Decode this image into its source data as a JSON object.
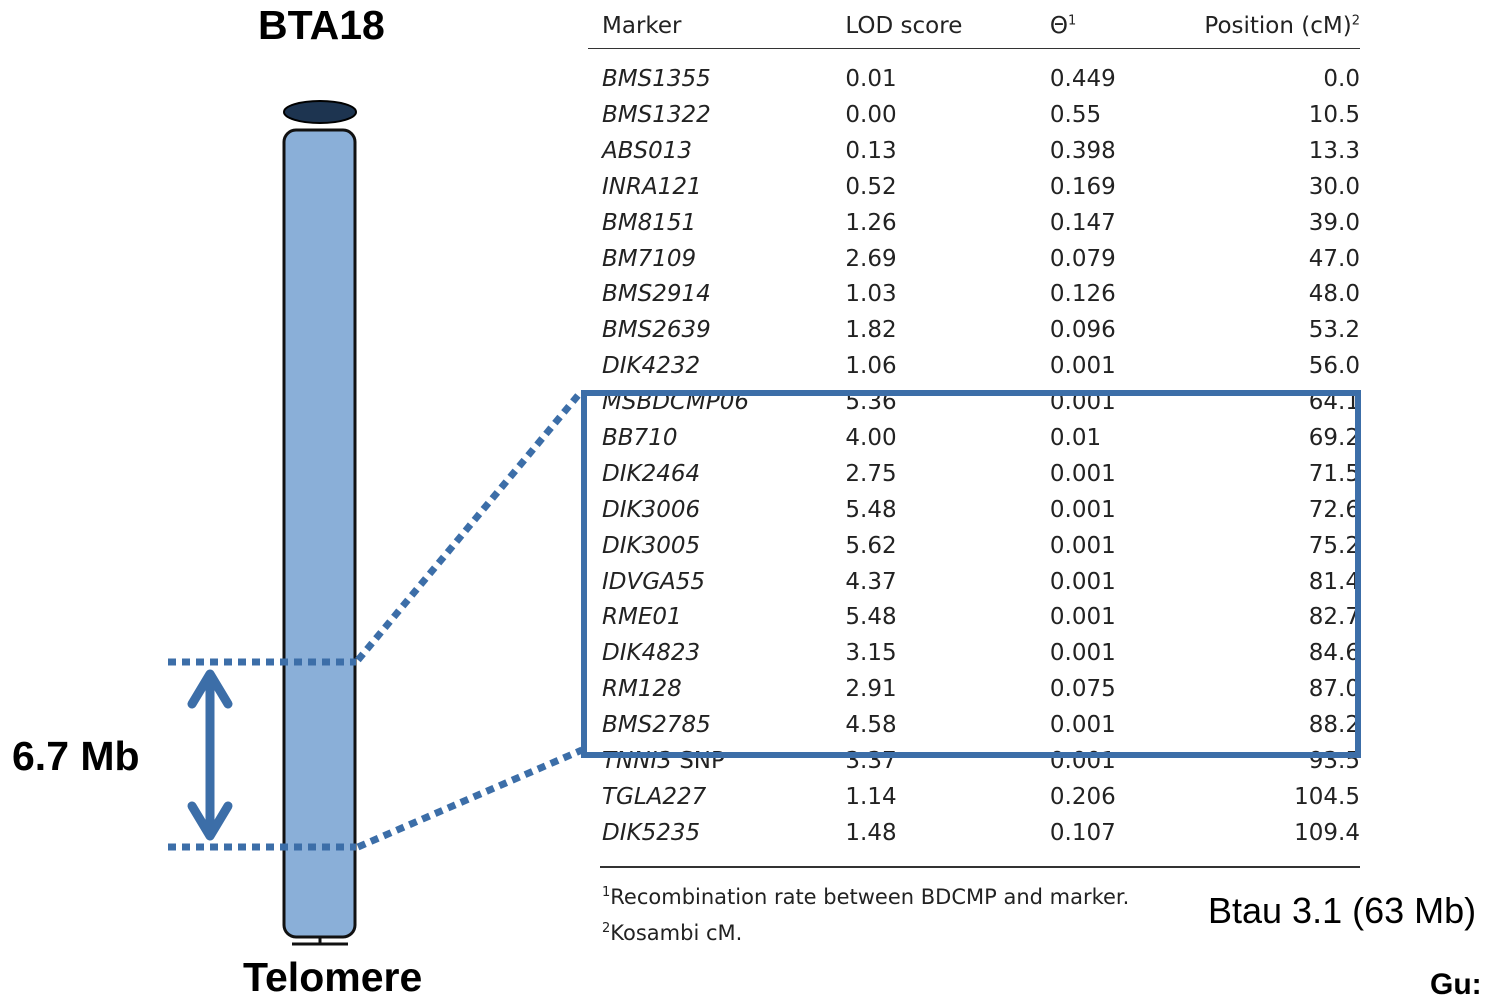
{
  "figure": {
    "chromosome_title": "BTA18",
    "region_size_label": "6.7 Mb",
    "telomere_label": "Telomere",
    "assembly_label": "Btau 3.1 (63 Mb)",
    "author_label_partial": "Gu:"
  },
  "colors": {
    "chromosome_fill": "#8aafd8",
    "chromosome_outline": "#111111",
    "centromere_cap": "#1d3450",
    "accent_blue": "#3c6ea8"
  },
  "table": {
    "headers": {
      "marker": "Marker",
      "lod": "LOD score",
      "theta": "Θ",
      "theta_sup": "1",
      "position": "Position (cM)",
      "position_sup": "2"
    },
    "rows": [
      {
        "marker": "BMS1355",
        "lod": "0.01",
        "theta": "0.449",
        "position": "0.0"
      },
      {
        "marker": "BMS1322",
        "lod": "0.00",
        "theta": "0.55",
        "position": "10.5"
      },
      {
        "marker": "ABS013",
        "lod": "0.13",
        "theta": "0.398",
        "position": "13.3"
      },
      {
        "marker": "INRA121",
        "lod": "0.52",
        "theta": "0.169",
        "position": "30.0"
      },
      {
        "marker": "BM8151",
        "lod": "1.26",
        "theta": "0.147",
        "position": "39.0"
      },
      {
        "marker": "BM7109",
        "lod": "2.69",
        "theta": "0.079",
        "position": "47.0"
      },
      {
        "marker": "BMS2914",
        "lod": "1.03",
        "theta": "0.126",
        "position": "48.0"
      },
      {
        "marker": "BMS2639",
        "lod": "1.82",
        "theta": "0.096",
        "position": "53.2"
      },
      {
        "marker": "DIK4232",
        "lod": "1.06",
        "theta": "0.001",
        "position": "56.0"
      },
      {
        "marker": "MSBDCMP06",
        "lod": "5.36",
        "theta": "0.001",
        "position": "64.1"
      },
      {
        "marker": "BB710",
        "lod": "4.00",
        "theta": "0.01",
        "position": "69.2"
      },
      {
        "marker": "DIK2464",
        "lod": "2.75",
        "theta": "0.001",
        "position": "71.5"
      },
      {
        "marker": "DIK3006",
        "lod": "5.48",
        "theta": "0.001",
        "position": "72.6"
      },
      {
        "marker": "DIK3005",
        "lod": "5.62",
        "theta": "0.001",
        "position": "75.2"
      },
      {
        "marker": "IDVGA55",
        "lod": "4.37",
        "theta": "0.001",
        "position": "81.4"
      },
      {
        "marker": "RME01",
        "lod": "5.48",
        "theta": "0.001",
        "position": "82.7"
      },
      {
        "marker": "DIK4823",
        "lod": "3.15",
        "theta": "0.001",
        "position": "84.6"
      },
      {
        "marker": "RM128",
        "lod": "2.91",
        "theta": "0.075",
        "position": "87.0"
      },
      {
        "marker": "BMS2785",
        "lod": "4.58",
        "theta": "0.001",
        "position": "88.2"
      },
      {
        "marker": "TNNI3",
        "marker_suffix": " SNP",
        "lod": "3.37",
        "theta": "0.001",
        "position": "93.5"
      },
      {
        "marker": "TGLA227",
        "lod": "1.14",
        "theta": "0.206",
        "position": "104.5"
      },
      {
        "marker": "DIK5235",
        "lod": "1.48",
        "theta": "0.107",
        "position": "109.4"
      }
    ],
    "footnotes": [
      {
        "sup": "1",
        "text": "Recombination rate between BDCMP and marker."
      },
      {
        "sup": "2",
        "text": "Kosambi cM."
      }
    ]
  }
}
